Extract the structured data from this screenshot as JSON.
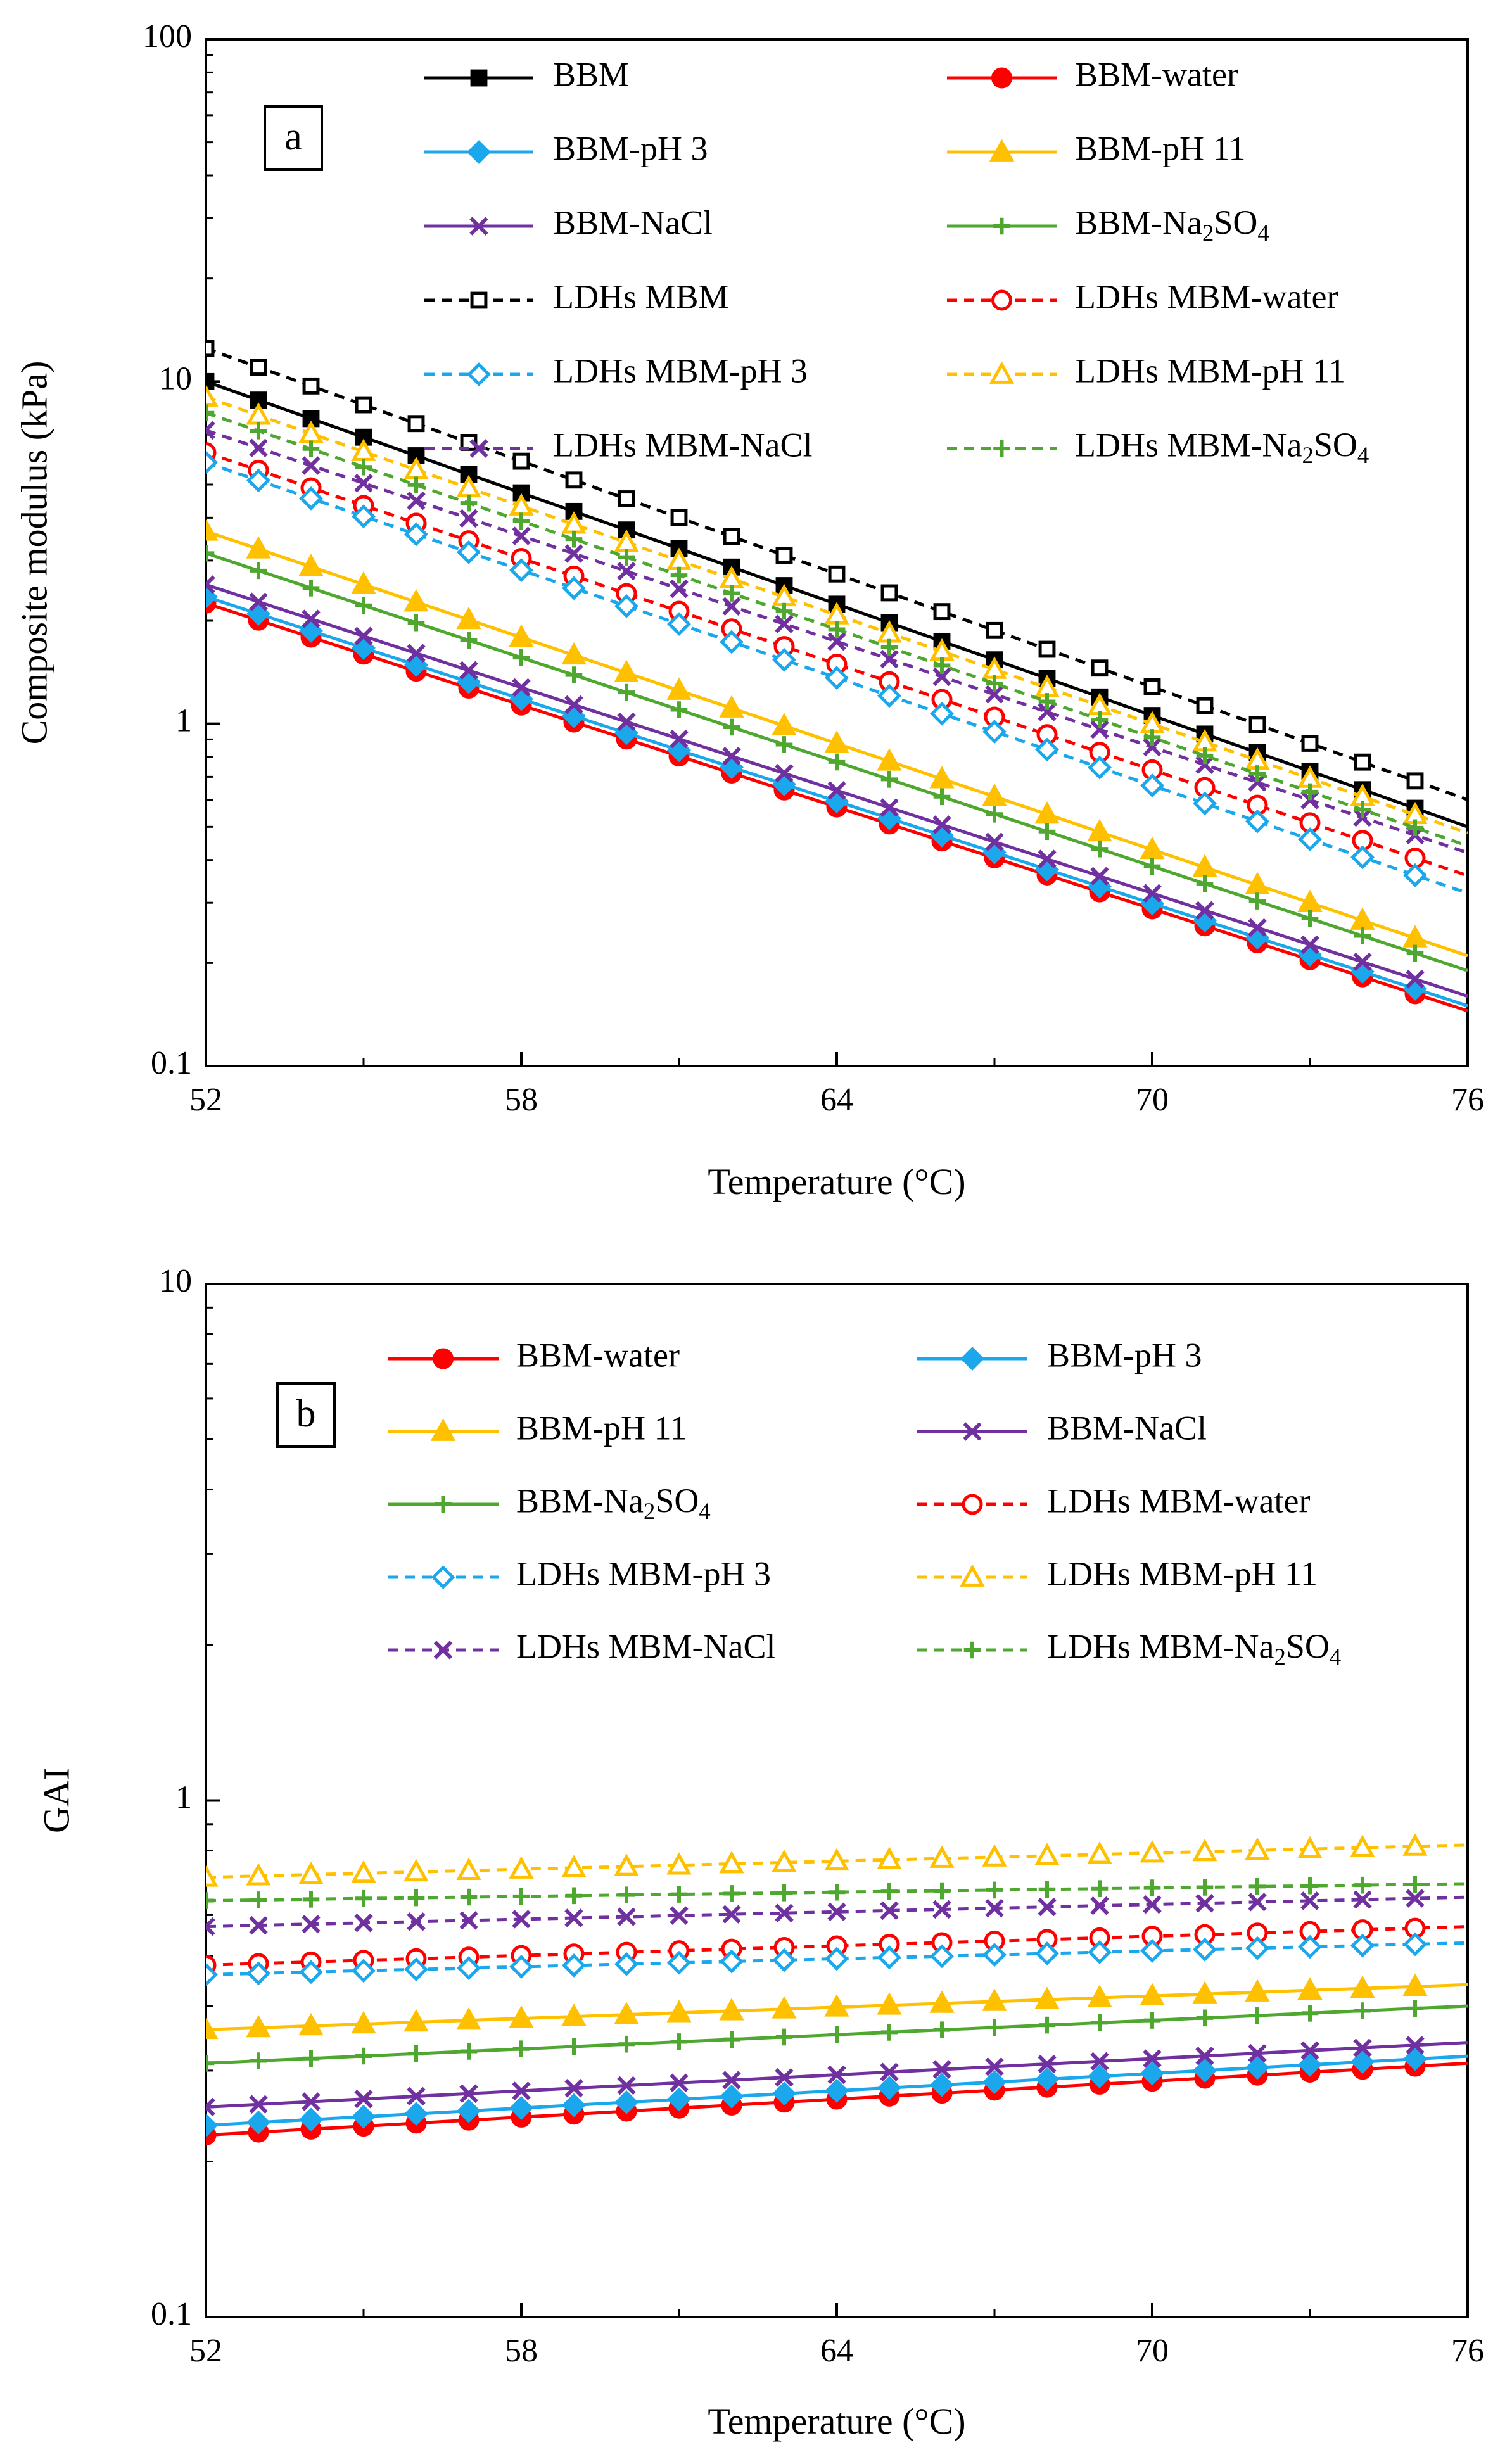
{
  "chart_data": [
    {
      "panel": "a",
      "type": "line",
      "title": "",
      "xlabel": "Temperature (°C)",
      "ylabel": "Composite modulus (kPa)",
      "yscale": "log",
      "xlim": [
        52,
        76
      ],
      "ylim": [
        0.1,
        100
      ],
      "xticks": [
        "52",
        "58",
        "64",
        "70",
        "76"
      ],
      "yticks": [
        "0.1",
        "1",
        "10",
        "100"
      ],
      "legend_position": "top",
      "series": [
        {
          "name": "BBM",
          "label_sub": "",
          "label_tail": "",
          "color": "#000000",
          "style": "solid",
          "marker": "square-filled",
          "y_start": 10.0,
          "y_end": 0.5
        },
        {
          "name": "BBM-water",
          "label_sub": "",
          "label_tail": "",
          "color": "#ff0000",
          "style": "solid",
          "marker": "circle-filled",
          "y_start": 2.25,
          "y_end": 0.145
        },
        {
          "name": "BBM-pH 3",
          "label_sub": "",
          "label_tail": "",
          "color": "#1aa7ec",
          "style": "solid",
          "marker": "diamond-filled",
          "y_start": 2.35,
          "y_end": 0.15
        },
        {
          "name": "BBM-pH 11",
          "label_sub": "",
          "label_tail": "",
          "color": "#ffc000",
          "style": "solid",
          "marker": "triangle-filled",
          "y_start": 3.65,
          "y_end": 0.21
        },
        {
          "name": "BBM-NaCl",
          "label_sub": "",
          "label_tail": "",
          "color": "#7030a0",
          "style": "solid",
          "marker": "x",
          "y_start": 2.55,
          "y_end": 0.16
        },
        {
          "name": "BBM-Na",
          "label_sub": "2",
          "label_tail": "SO4",
          "color": "#4ea72e",
          "style": "solid",
          "marker": "plus",
          "y_start": 3.15,
          "y_end": 0.19
        },
        {
          "name": "LDHs MBM",
          "label_sub": "",
          "label_tail": "",
          "color": "#000000",
          "style": "dashed",
          "marker": "square-open",
          "y_start": 12.5,
          "y_end": 0.6
        },
        {
          "name": "LDHs MBM-water",
          "label_sub": "",
          "label_tail": "",
          "color": "#ff0000",
          "style": "dashed",
          "marker": "circle-open",
          "y_start": 6.2,
          "y_end": 0.36
        },
        {
          "name": "LDHs MBM-pH 3",
          "label_sub": "",
          "label_tail": "",
          "color": "#1aa7ec",
          "style": "dashed",
          "marker": "diamond-open",
          "y_start": 5.8,
          "y_end": 0.32
        },
        {
          "name": "LDHs MBM-pH 11",
          "label_sub": "",
          "label_tail": "",
          "color": "#ffc000",
          "style": "dashed",
          "marker": "triangle-open",
          "y_start": 9.0,
          "y_end": 0.48
        },
        {
          "name": "LDHs MBM-NaCl",
          "label_sub": "",
          "label_tail": "",
          "color": "#7030a0",
          "style": "dashed",
          "marker": "x",
          "y_start": 7.2,
          "y_end": 0.42
        },
        {
          "name": "LDHs MBM-Na",
          "label_sub": "2",
          "label_tail": "SO4",
          "color": "#4ea72e",
          "style": "dashed",
          "marker": "plus",
          "y_start": 8.1,
          "y_end": 0.44
        }
      ]
    },
    {
      "panel": "b",
      "type": "line",
      "title": "",
      "xlabel": "Temperature (°C)",
      "ylabel": "GAI",
      "yscale": "log",
      "xlim": [
        52,
        76
      ],
      "ylim": [
        0.1,
        10
      ],
      "xticks": [
        "52",
        "58",
        "64",
        "70",
        "76"
      ],
      "yticks": [
        "0.1",
        "1",
        "10"
      ],
      "legend_position": "top",
      "series": [
        {
          "name": "BBM-water",
          "label_sub": "",
          "label_tail": "",
          "color": "#ff0000",
          "style": "solid",
          "marker": "circle-filled",
          "y_start": 0.225,
          "y_end": 0.31
        },
        {
          "name": "BBM-pH 3",
          "label_sub": "",
          "label_tail": "",
          "color": "#1aa7ec",
          "style": "solid",
          "marker": "diamond-filled",
          "y_start": 0.235,
          "y_end": 0.32
        },
        {
          "name": "BBM-pH 11",
          "label_sub": "",
          "label_tail": "",
          "color": "#ffc000",
          "style": "solid",
          "marker": "triangle-filled",
          "y_start": 0.36,
          "y_end": 0.44
        },
        {
          "name": "BBM-NaCl",
          "label_sub": "",
          "label_tail": "",
          "color": "#7030a0",
          "style": "solid",
          "marker": "x",
          "y_start": 0.255,
          "y_end": 0.34
        },
        {
          "name": "BBM-Na",
          "label_sub": "2",
          "label_tail": "SO4",
          "color": "#4ea72e",
          "style": "solid",
          "marker": "plus",
          "y_start": 0.31,
          "y_end": 0.4
        },
        {
          "name": "LDHs MBM-water",
          "label_sub": "",
          "label_tail": "",
          "color": "#ff0000",
          "style": "dashed",
          "marker": "circle-open",
          "y_start": 0.48,
          "y_end": 0.57
        },
        {
          "name": "LDHs MBM-pH 3",
          "label_sub": "",
          "label_tail": "",
          "color": "#1aa7ec",
          "style": "dashed",
          "marker": "diamond-open",
          "y_start": 0.46,
          "y_end": 0.53
        },
        {
          "name": "LDHs MBM-pH 11",
          "label_sub": "",
          "label_tail": "",
          "color": "#ffc000",
          "style": "dashed",
          "marker": "triangle-open",
          "y_start": 0.71,
          "y_end": 0.82
        },
        {
          "name": "LDHs MBM-NaCl",
          "label_sub": "",
          "label_tail": "",
          "color": "#7030a0",
          "style": "dashed",
          "marker": "x",
          "y_start": 0.57,
          "y_end": 0.65
        },
        {
          "name": "LDHs MBM-Na",
          "label_sub": "2",
          "label_tail": "SO4",
          "color": "#4ea72e",
          "style": "dashed",
          "marker": "plus",
          "y_start": 0.64,
          "y_end": 0.69
        }
      ]
    }
  ]
}
